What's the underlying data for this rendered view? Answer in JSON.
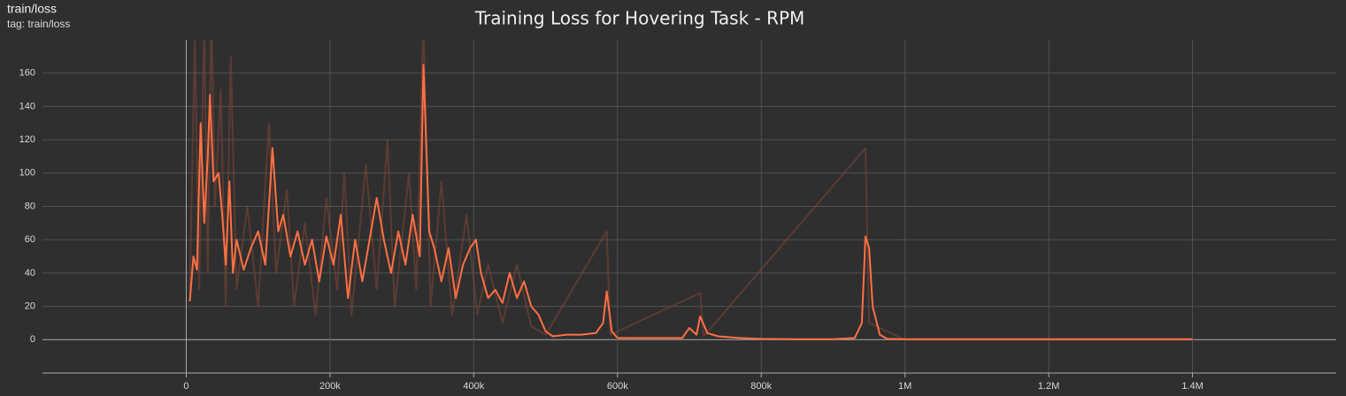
{
  "card": {
    "name": "train/loss",
    "tag": "tag: train/loss"
  },
  "chart_data": {
    "type": "line",
    "title": "Training Loss for Hovering Task - RPM",
    "xlim": [
      -200000,
      1600000
    ],
    "xticks": [
      {
        "value": 0,
        "label": "0"
      },
      {
        "value": 200000,
        "label": "200k"
      },
      {
        "value": 400000,
        "label": "400k"
      },
      {
        "value": 600000,
        "label": "600k"
      },
      {
        "value": 800000,
        "label": "800k"
      },
      {
        "value": 1000000,
        "label": "1M"
      },
      {
        "value": 1200000,
        "label": "1.2M"
      },
      {
        "value": 1400000,
        "label": "1.4M"
      }
    ],
    "ylim": [
      -20,
      180
    ],
    "yticks": [
      0,
      20,
      40,
      60,
      80,
      100,
      120,
      140,
      160
    ],
    "grid": true,
    "series": [
      {
        "color": "#7a4535",
        "opacity": 0.6,
        "x": [
          5000,
          12000,
          18000,
          25000,
          30000,
          35000,
          40000,
          48000,
          55000,
          62000,
          70000,
          85000,
          100000,
          115000,
          125000,
          140000,
          150000,
          165000,
          180000,
          195000,
          210000,
          220000,
          230000,
          250000,
          265000,
          280000,
          290000,
          310000,
          320000,
          330000,
          340000,
          355000,
          370000,
          390000,
          405000,
          420000,
          440000,
          460000,
          480000,
          500000,
          585000,
          590000,
          715000,
          720000,
          945000,
          950000,
          1000000,
          1400000
        ],
        "values": [
          30,
          180,
          30,
          190,
          40,
          200,
          80,
          150,
          20,
          170,
          30,
          80,
          20,
          130,
          40,
          90,
          20,
          70,
          15,
          85,
          30,
          100,
          15,
          105,
          30,
          120,
          20,
          100,
          30,
          190,
          20,
          95,
          15,
          75,
          15,
          45,
          10,
          45,
          8,
          3,
          65,
          3,
          28,
          2,
          115,
          10,
          0,
          0
        ]
      },
      {
        "color": "#ff7043",
        "opacity": 1,
        "x": [
          5000,
          10000,
          15000,
          20000,
          25000,
          30000,
          33000,
          38000,
          45000,
          50000,
          55000,
          60000,
          65000,
          70000,
          80000,
          90000,
          100000,
          110000,
          120000,
          128000,
          135000,
          145000,
          155000,
          165000,
          175000,
          185000,
          195000,
          205000,
          215000,
          225000,
          235000,
          245000,
          255000,
          265000,
          275000,
          285000,
          295000,
          305000,
          315000,
          325000,
          330000,
          338000,
          345000,
          355000,
          365000,
          375000,
          385000,
          395000,
          403000,
          410000,
          420000,
          430000,
          440000,
          450000,
          460000,
          470000,
          480000,
          490000,
          500000,
          510000,
          530000,
          550000,
          570000,
          580000,
          585000,
          592000,
          600000,
          650000,
          690000,
          700000,
          710000,
          715000,
          725000,
          740000,
          770000,
          800000,
          850000,
          900000,
          930000,
          940000,
          945000,
          950000,
          955000,
          965000,
          975000,
          1000000,
          1200000,
          1400000
        ],
        "values": [
          23,
          50,
          42,
          130,
          70,
          110,
          147,
          95,
          100,
          75,
          45,
          95,
          40,
          60,
          42,
          55,
          65,
          45,
          115,
          65,
          75,
          50,
          65,
          45,
          60,
          35,
          62,
          45,
          75,
          25,
          60,
          35,
          60,
          85,
          60,
          40,
          65,
          45,
          75,
          50,
          165,
          65,
          55,
          35,
          55,
          25,
          45,
          55,
          60,
          40,
          25,
          30,
          22,
          40,
          25,
          35,
          20,
          15,
          5,
          2,
          3,
          3,
          4,
          10,
          29,
          5,
          1,
          1,
          1,
          7,
          3,
          14,
          4,
          2,
          1,
          0.5,
          0.3,
          0.3,
          1,
          10,
          62,
          55,
          20,
          3,
          0.5,
          0.3,
          0.3,
          0.3
        ]
      }
    ]
  }
}
